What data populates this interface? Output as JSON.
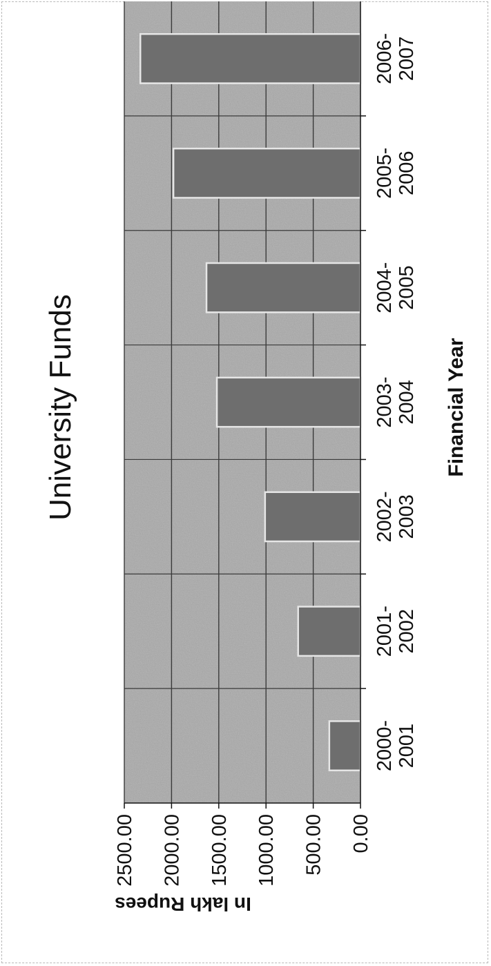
{
  "chart_data": {
    "type": "bar",
    "title": "University Funds",
    "xlabel": "Financial Year",
    "ylabel": "In lakh Rupees",
    "categories": [
      [
        "2000-",
        "2001"
      ],
      [
        "2001-",
        "2002"
      ],
      [
        "2002-",
        "2003"
      ],
      [
        "2003-",
        "2004"
      ],
      [
        "2004-",
        "2005"
      ],
      [
        "2005-",
        "2006"
      ],
      [
        "2006-",
        "2007"
      ]
    ],
    "values": [
      330,
      660,
      1010,
      1520,
      1630,
      1980,
      2330
    ],
    "ylim": [
      0,
      2500
    ],
    "yticks": [
      "0.00",
      "500.00",
      "1000.00",
      "1500.00",
      "2000.00",
      "2500.00"
    ],
    "grid": true,
    "legend": "none",
    "orientation": "rotated-90-ccw",
    "colors": {
      "plot_background": "#a9a9a9",
      "bar_fill": "#6e6e6e",
      "bar_stroke": "#e6e6e6",
      "gridline": "#3a3a3a",
      "text": "#111111"
    }
  }
}
